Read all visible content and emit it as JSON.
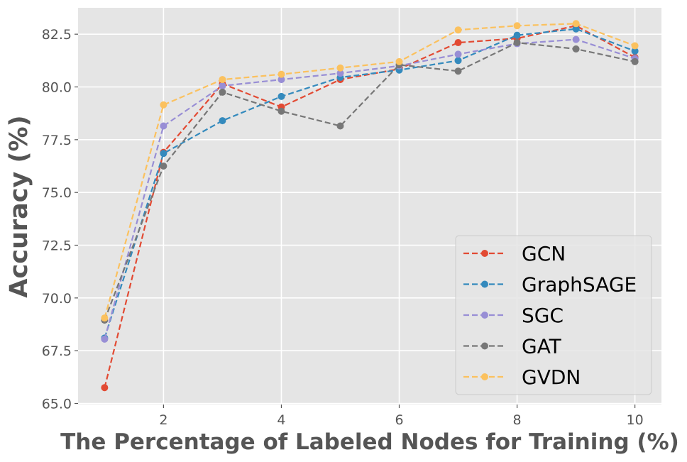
{
  "chart_data": {
    "type": "line",
    "title": "",
    "xlabel": "The Percentage of Labeled Nodes for Training (%)",
    "ylabel": "Accuracy (%)",
    "x": [
      1,
      2,
      3,
      4,
      5,
      6,
      7,
      8,
      9,
      10
    ],
    "xlim": [
      0.55,
      10.45
    ],
    "ylim": [
      64.95,
      83.75
    ],
    "xticks": [
      2,
      4,
      6,
      8,
      10
    ],
    "xtick_labels": [
      "2",
      "4",
      "6",
      "8",
      "10"
    ],
    "yticks": [
      65.0,
      67.5,
      70.0,
      72.5,
      75.0,
      77.5,
      80.0,
      82.5
    ],
    "ytick_labels": [
      "65.0",
      "67.5",
      "70.0",
      "72.5",
      "75.0",
      "77.5",
      "80.0",
      "82.5"
    ],
    "grid": true,
    "legend_position": "lower-right",
    "series": [
      {
        "name": "GCN",
        "color": "#E24A33",
        "values": [
          65.75,
          76.9,
          80.15,
          79.05,
          80.35,
          80.85,
          82.1,
          82.3,
          82.9,
          81.4
        ]
      },
      {
        "name": "GraphSAGE",
        "color": "#348ABD",
        "values": [
          68.1,
          76.85,
          78.4,
          79.55,
          80.45,
          80.8,
          81.25,
          82.45,
          82.75,
          81.7
        ]
      },
      {
        "name": "SGC",
        "color": "#988ED5",
        "values": [
          68.05,
          78.15,
          80.05,
          80.35,
          80.65,
          81.0,
          81.55,
          82.05,
          82.25,
          81.35
        ]
      },
      {
        "name": "GAT",
        "color": "#777777",
        "values": [
          68.95,
          76.25,
          79.75,
          78.85,
          78.15,
          81.05,
          80.75,
          82.1,
          81.8,
          81.2
        ]
      },
      {
        "name": "GVDN",
        "color": "#FBC15E",
        "values": [
          69.05,
          79.15,
          80.35,
          80.6,
          80.9,
          81.2,
          82.7,
          82.9,
          83.0,
          81.95
        ]
      }
    ]
  }
}
